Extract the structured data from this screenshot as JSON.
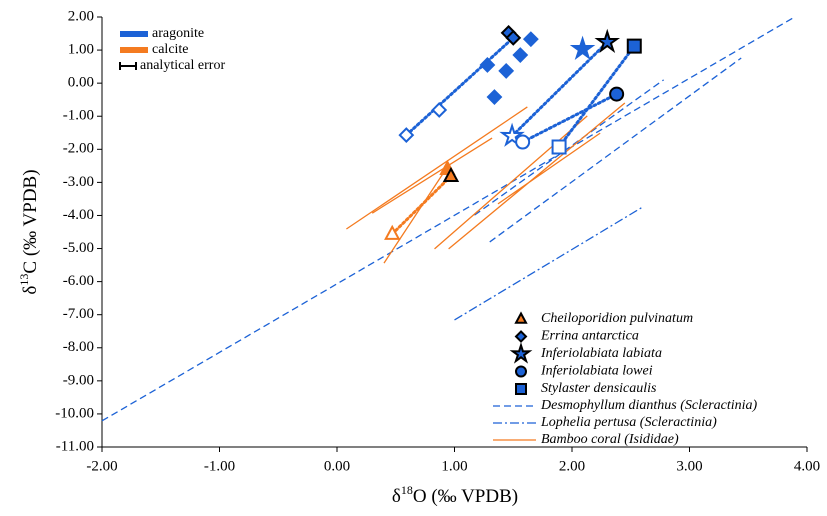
{
  "chart_data": {
    "type": "scatter",
    "xlabel": [
      "δ",
      "18",
      "O (‰ VPDB)"
    ],
    "ylabel": [
      "δ",
      "13",
      "C (‰ VPDB)"
    ],
    "xlim": [
      -2,
      4
    ],
    "ylim": [
      -11,
      2
    ],
    "xticks": [
      {
        "value": -2,
        "label": "-2.00"
      },
      {
        "value": -1,
        "label": "-1.00"
      },
      {
        "value": 0,
        "label": "0.00"
      },
      {
        "value": 1,
        "label": "1.00"
      },
      {
        "value": 2,
        "label": "2.00"
      },
      {
        "value": 3,
        "label": "3.00"
      },
      {
        "value": 4,
        "label": "4.00"
      }
    ],
    "yticks": [
      {
        "value": 2,
        "label": "2.00"
      },
      {
        "value": 1,
        "label": "1.00"
      },
      {
        "value": 0,
        "label": "0.00"
      },
      {
        "value": -1,
        "label": "-1.00"
      },
      {
        "value": -2,
        "label": "-2.00"
      },
      {
        "value": -3,
        "label": "-3.00"
      },
      {
        "value": -4,
        "label": "-4.00"
      },
      {
        "value": -5,
        "label": "-5.00"
      },
      {
        "value": -6,
        "label": "-6.00"
      },
      {
        "value": -7,
        "label": "-7.00"
      },
      {
        "value": -8,
        "label": "-8.00"
      },
      {
        "value": -9,
        "label": "-9.00"
      },
      {
        "value": -10,
        "label": "-10.00"
      },
      {
        "value": -11,
        "label": "-11.00"
      }
    ],
    "material_legend": [
      {
        "name": "aragonite",
        "color": "#1c62d6"
      },
      {
        "name": "calcite",
        "color": "#f47b20"
      }
    ],
    "error_legend": "analytical error",
    "series": [
      {
        "name": "Cheiloporidion pulvinatum",
        "color": "#f47b20",
        "marker": "triangle",
        "x": [
          0.47,
          0.94,
          0.97
        ],
        "y": [
          -4.56,
          -2.6,
          -2.81
        ],
        "styles": [
          "open",
          "filled",
          "outlined"
        ]
      },
      {
        "name": "Errina antarctica",
        "color": "#1c62d6",
        "marker": "diamond",
        "x": [
          0.59,
          0.87,
          1.28,
          1.34,
          1.44,
          1.56,
          1.65,
          1.46,
          1.5
        ],
        "y": [
          -1.57,
          -0.81,
          0.55,
          -0.42,
          0.37,
          0.85,
          1.33,
          1.52,
          1.37
        ],
        "styles": [
          "open",
          "open",
          "filled",
          "filled",
          "filled",
          "filled",
          "filled",
          "outlined",
          "outlined"
        ]
      },
      {
        "name": "Inferiolabiata labiata",
        "color": "#1c62d6",
        "marker": "star",
        "x": [
          1.49,
          2.09,
          2.3
        ],
        "y": [
          -1.6,
          1.03,
          1.24
        ],
        "styles": [
          "open",
          "filled",
          "outlined"
        ]
      },
      {
        "name": "Inferiolabiata lowei",
        "color": "#1c62d6",
        "marker": "circle",
        "x": [
          1.58,
          2.38
        ],
        "y": [
          -1.78,
          -0.33
        ],
        "styles": [
          "open",
          "outlined"
        ]
      },
      {
        "name": "Stylaster densicaulis",
        "color": "#1c62d6",
        "marker": "square",
        "x": [
          1.89,
          2.53
        ],
        "y": [
          -1.93,
          1.12
        ],
        "styles": [
          "open",
          "outlined"
        ]
      }
    ],
    "trend_line": "dotted",
    "line_series": [
      {
        "name": "Desmophyllum dianthus (Scleractinia)",
        "color": "#1c62d6",
        "style": "dashed",
        "x": [
          -2,
          3.88,
          null,
          1.3,
          3.44,
          null,
          1.17,
          2.78
        ],
        "y": [
          -10.21,
          1.97,
          null,
          -4.8,
          0.76,
          null,
          -3.99,
          0.1
        ]
      },
      {
        "name": "Lophelia pertusa (Scleractinia)",
        "color": "#1c62d6",
        "style": "dashdot",
        "x": [
          1.0,
          2.59
        ],
        "y": [
          -7.16,
          -3.77
        ]
      },
      {
        "name": "Bamboo coral (Isididae)",
        "color": "#f47b20",
        "style": "solid",
        "x": [
          0.08,
          1.62,
          null,
          0.3,
          1.32,
          null,
          0.83,
          2.13,
          null,
          0.95,
          2.45,
          null,
          1.37,
          2.24,
          null,
          0.4,
          0.94
        ],
        "y": [
          -4.41,
          -0.72,
          null,
          -3.93,
          -1.66,
          null,
          -5.01,
          -0.99,
          null,
          -5.01,
          -0.6,
          null,
          -3.65,
          -1.51,
          null,
          -5.44,
          -2.53
        ]
      }
    ]
  }
}
